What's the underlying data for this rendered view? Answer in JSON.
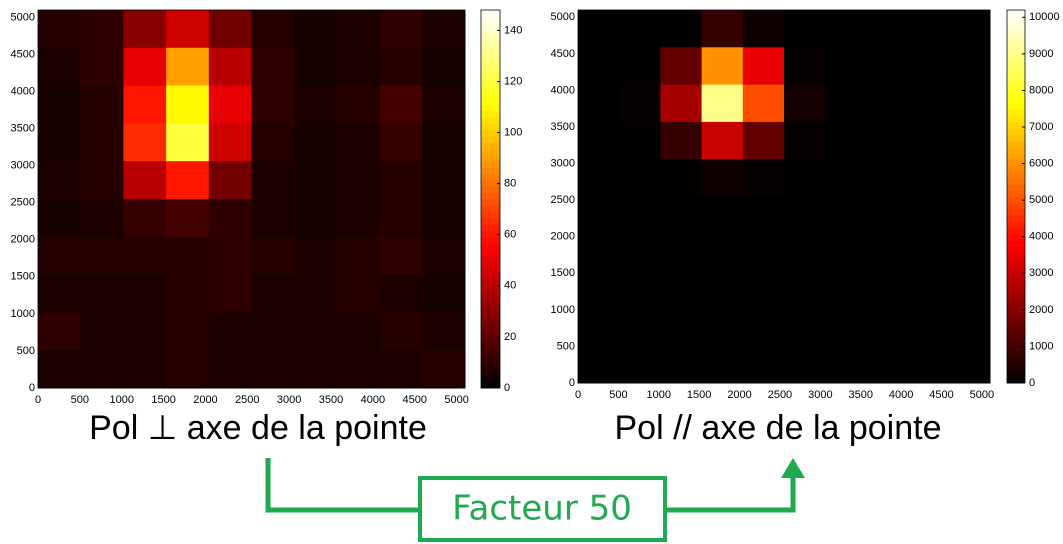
{
  "chart_data": [
    {
      "type": "heatmap",
      "title": "Pol ⊥ axe de la pointe",
      "xlim": [
        0,
        5100
      ],
      "ylim": [
        0,
        5100
      ],
      "xticks": [
        0,
        500,
        1000,
        1500,
        2000,
        2500,
        3000,
        3500,
        4000,
        4500,
        5000
      ],
      "yticks": [
        0,
        500,
        1000,
        1500,
        2000,
        2500,
        3000,
        3500,
        4000,
        4500,
        5000
      ],
      "colormap": "hot",
      "clim": [
        0,
        148
      ],
      "cticks": [
        0,
        20,
        40,
        60,
        80,
        100,
        120,
        140
      ],
      "z": [
        [
          8,
          10,
          30,
          45,
          25,
          8,
          5,
          6,
          10,
          6
        ],
        [
          6,
          10,
          50,
          90,
          40,
          10,
          5,
          6,
          8,
          5
        ],
        [
          5,
          8,
          60,
          110,
          50,
          10,
          6,
          8,
          15,
          6
        ],
        [
          5,
          8,
          65,
          120,
          45,
          8,
          5,
          6,
          12,
          5
        ],
        [
          6,
          8,
          40,
          60,
          25,
          6,
          5,
          6,
          8,
          5
        ],
        [
          5,
          6,
          12,
          15,
          10,
          6,
          5,
          6,
          8,
          5
        ],
        [
          8,
          8,
          8,
          8,
          10,
          8,
          6,
          8,
          10,
          6
        ],
        [
          6,
          6,
          6,
          8,
          10,
          6,
          6,
          8,
          6,
          5
        ],
        [
          10,
          6,
          6,
          8,
          6,
          6,
          6,
          6,
          8,
          6
        ],
        [
          6,
          6,
          6,
          8,
          6,
          6,
          6,
          6,
          6,
          8
        ]
      ]
    },
    {
      "type": "heatmap",
      "title": "Pol // axe de la pointe",
      "xlim": [
        0,
        5100
      ],
      "ylim": [
        0,
        5100
      ],
      "xticks": [
        0,
        500,
        1000,
        1500,
        2000,
        2500,
        3000,
        3500,
        4000,
        4500,
        5000
      ],
      "yticks": [
        0,
        500,
        1000,
        1500,
        2000,
        2500,
        3000,
        3500,
        4000,
        4500,
        5000
      ],
      "colormap": "hot",
      "clim": [
        0,
        10200
      ],
      "cticks": [
        0,
        1000,
        2000,
        3000,
        4000,
        5000,
        6000,
        7000,
        8000,
        9000,
        10000
      ],
      "z": [
        [
          0,
          0,
          50,
          800,
          200,
          0,
          0,
          0,
          0,
          0
        ],
        [
          0,
          50,
          1500,
          6000,
          3500,
          100,
          0,
          0,
          0,
          0
        ],
        [
          0,
          100,
          2500,
          9000,
          5000,
          300,
          0,
          0,
          0,
          0
        ],
        [
          0,
          50,
          800,
          3000,
          1500,
          100,
          0,
          0,
          0,
          0
        ],
        [
          0,
          0,
          50,
          200,
          100,
          0,
          0,
          0,
          0,
          0
        ],
        [
          0,
          0,
          0,
          0,
          0,
          0,
          0,
          0,
          0,
          0
        ],
        [
          0,
          0,
          0,
          0,
          0,
          0,
          0,
          0,
          0,
          0
        ],
        [
          0,
          0,
          0,
          0,
          0,
          0,
          0,
          0,
          0,
          0
        ],
        [
          0,
          0,
          0,
          0,
          0,
          0,
          0,
          0,
          0,
          0
        ],
        [
          0,
          0,
          0,
          0,
          0,
          0,
          0,
          0,
          0,
          0
        ]
      ]
    }
  ],
  "annotation": {
    "text": "Facteur 50"
  }
}
